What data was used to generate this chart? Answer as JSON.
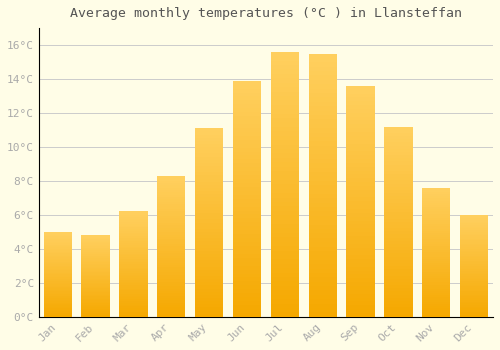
{
  "title": "Average monthly temperatures (°C ) in Llansteffan",
  "months": [
    "Jan",
    "Feb",
    "Mar",
    "Apr",
    "May",
    "Jun",
    "Jul",
    "Aug",
    "Sep",
    "Oct",
    "Nov",
    "Dec"
  ],
  "values": [
    5.0,
    4.8,
    6.2,
    8.3,
    11.1,
    13.9,
    15.6,
    15.5,
    13.6,
    11.2,
    7.6,
    6.0
  ],
  "bar_color_bottom": "#F5A800",
  "bar_color_top": "#FFD060",
  "background_color": "#FFFDE7",
  "grid_color": "#CCCCCC",
  "tick_label_color": "#AAAAAA",
  "title_color": "#555555",
  "ylim": [
    0,
    17
  ],
  "yticks": [
    0,
    2,
    4,
    6,
    8,
    10,
    12,
    14,
    16
  ],
  "ytick_labels": [
    "0°C",
    "2°C",
    "4°C",
    "6°C",
    "8°C",
    "10°C",
    "12°C",
    "14°C",
    "16°C"
  ],
  "bar_width": 0.75,
  "figsize": [
    5.0,
    3.5
  ],
  "dpi": 100
}
